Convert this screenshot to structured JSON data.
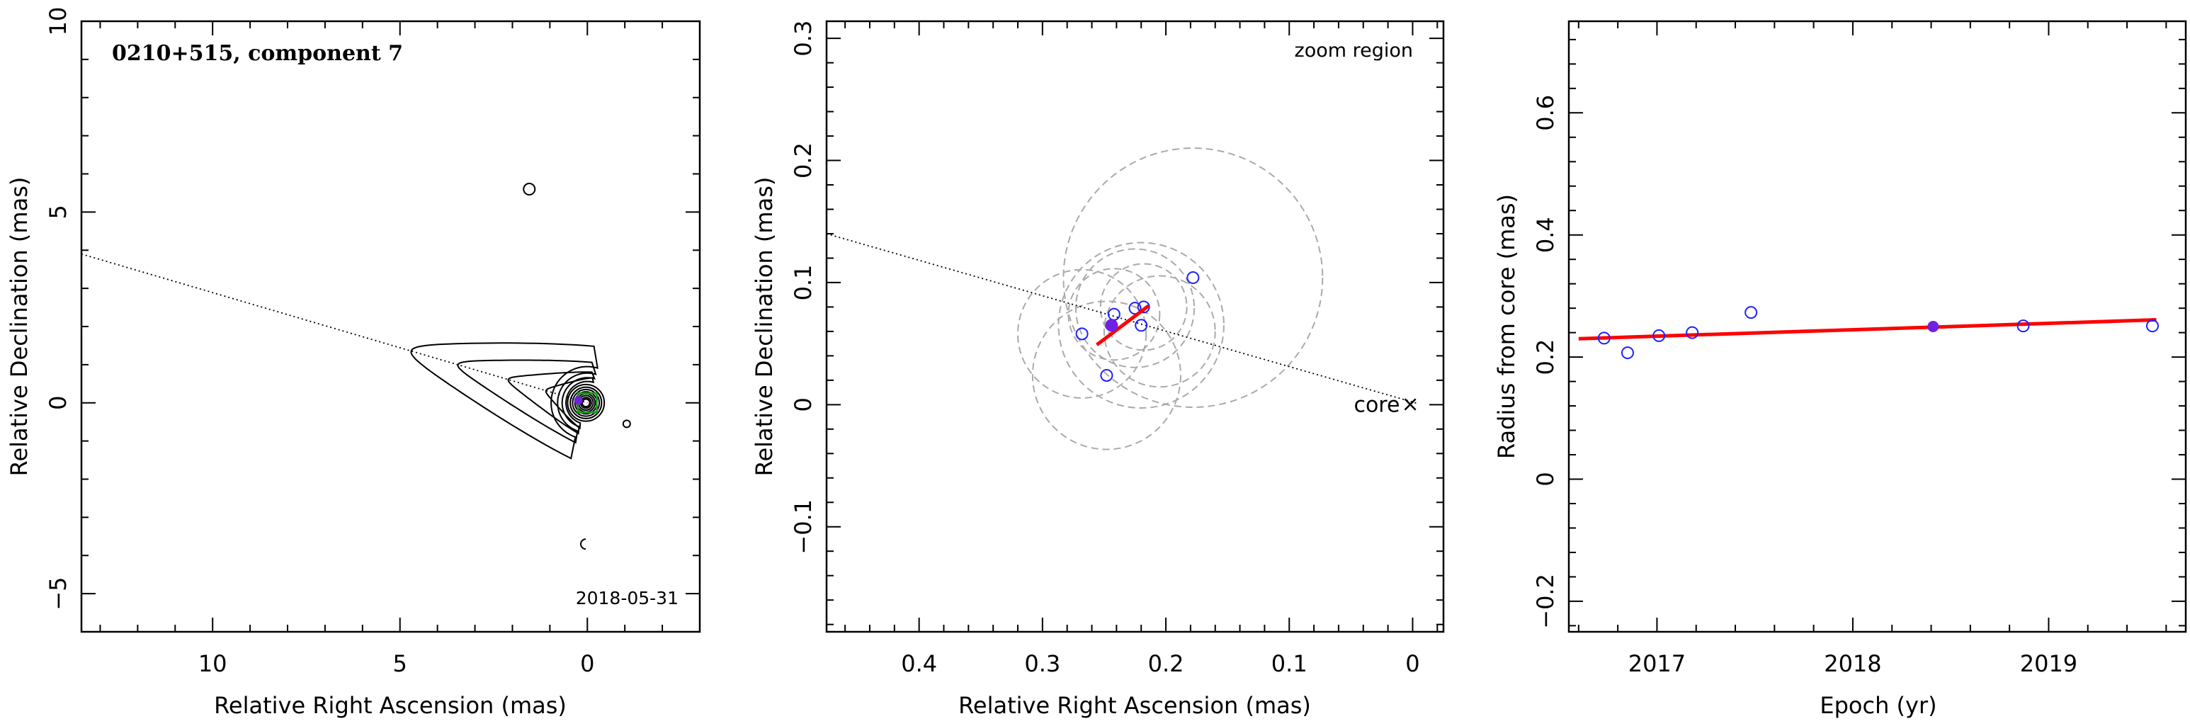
{
  "chart_data": [
    {
      "type": "contour",
      "title": "0210+515, component 7",
      "xlabel": "Relative Right Ascension (mas)",
      "ylabel": "Relative Declination (mas)",
      "xlim": [
        13.5,
        -3
      ],
      "ylim": [
        -6,
        10
      ],
      "xticks": [
        10,
        5,
        0
      ],
      "yticks": [
        -5,
        0,
        5,
        10
      ],
      "date_label": "2018-05-31",
      "jet_axis": {
        "x": [
          13.5,
          0
        ],
        "y": [
          3.9,
          0
        ]
      },
      "component_marker": {
        "x": 0.24,
        "y": 0.065,
        "color": "#7020e0"
      },
      "core_box": {
        "x": 0,
        "y": 0,
        "half_size": 0.25,
        "color": "#1a9a1a"
      },
      "small_features": [
        {
          "x": 1.55,
          "y": 5.6
        },
        {
          "x": 0.1,
          "y": -3.7
        }
      ]
    },
    {
      "type": "scatter",
      "xlabel": "Relative Right Ascension (mas)",
      "ylabel": "Relative Declination (mas)",
      "xlim": [
        0.475,
        -0.025
      ],
      "ylim": [
        -0.186,
        0.314
      ],
      "xticks": [
        0.4,
        0.3,
        0.2,
        0.1,
        0
      ],
      "yticks": [
        -0.1,
        0,
        0.1,
        0.2,
        0.3
      ],
      "annotation": "zoom region",
      "core_label": "core",
      "core_marker": "×",
      "jet_axis": {
        "x": [
          0.475,
          0
        ],
        "y": [
          0.14,
          0
        ]
      },
      "points": [
        {
          "x": 0.268,
          "y": 0.058
        },
        {
          "x": 0.248,
          "y": 0.024
        },
        {
          "x": 0.242,
          "y": 0.074
        },
        {
          "x": 0.225,
          "y": 0.079
        },
        {
          "x": 0.22,
          "y": 0.065
        },
        {
          "x": 0.218,
          "y": 0.08
        },
        {
          "x": 0.178,
          "y": 0.104
        }
      ],
      "highlight_point": {
        "x": 0.244,
        "y": 0.065
      },
      "error_circles": [
        {
          "x": 0.268,
          "y": 0.058,
          "r": 0.052
        },
        {
          "x": 0.248,
          "y": 0.024,
          "r": 0.06
        },
        {
          "x": 0.242,
          "y": 0.074,
          "r": 0.037
        },
        {
          "x": 0.225,
          "y": 0.079,
          "r": 0.048
        },
        {
          "x": 0.22,
          "y": 0.065,
          "r": 0.067
        },
        {
          "x": 0.218,
          "y": 0.08,
          "r": 0.035
        },
        {
          "x": 0.178,
          "y": 0.104,
          "r": 0.105
        },
        {
          "x": 0.205,
          "y": 0.06,
          "r": 0.045
        }
      ],
      "motion_vector": {
        "x": [
          0.256,
          0.214
        ],
        "y": [
          0.049,
          0.081
        ],
        "color": "#ff0000"
      },
      "circle_color": "#aaaaaa",
      "point_color": "#2020ff",
      "highlight_color": "#7020e0"
    },
    {
      "type": "scatter",
      "xlabel": "Epoch (yr)",
      "ylabel": "Radius from core (mas)",
      "xlim": [
        2016.55,
        2019.7
      ],
      "ylim": [
        -0.25,
        0.75
      ],
      "xticks": [
        2017,
        2018,
        2019
      ],
      "yticks": [
        -0.2,
        0,
        0.2,
        0.4,
        0.6
      ],
      "points": [
        {
          "x": 2016.73,
          "y": 0.231
        },
        {
          "x": 2016.85,
          "y": 0.207
        },
        {
          "x": 2017.01,
          "y": 0.235
        },
        {
          "x": 2017.18,
          "y": 0.24
        },
        {
          "x": 2017.48,
          "y": 0.273
        },
        {
          "x": 2018.87,
          "y": 0.251
        },
        {
          "x": 2019.53,
          "y": 0.251
        }
      ],
      "highlight_point": {
        "x": 2018.41,
        "y": 0.25
      },
      "fit_line": {
        "x": [
          2016.6,
          2019.55
        ],
        "y": [
          0.23,
          0.261
        ],
        "color": "#ff0000"
      },
      "point_color": "#2020ff",
      "highlight_color": "#7020e0"
    }
  ]
}
